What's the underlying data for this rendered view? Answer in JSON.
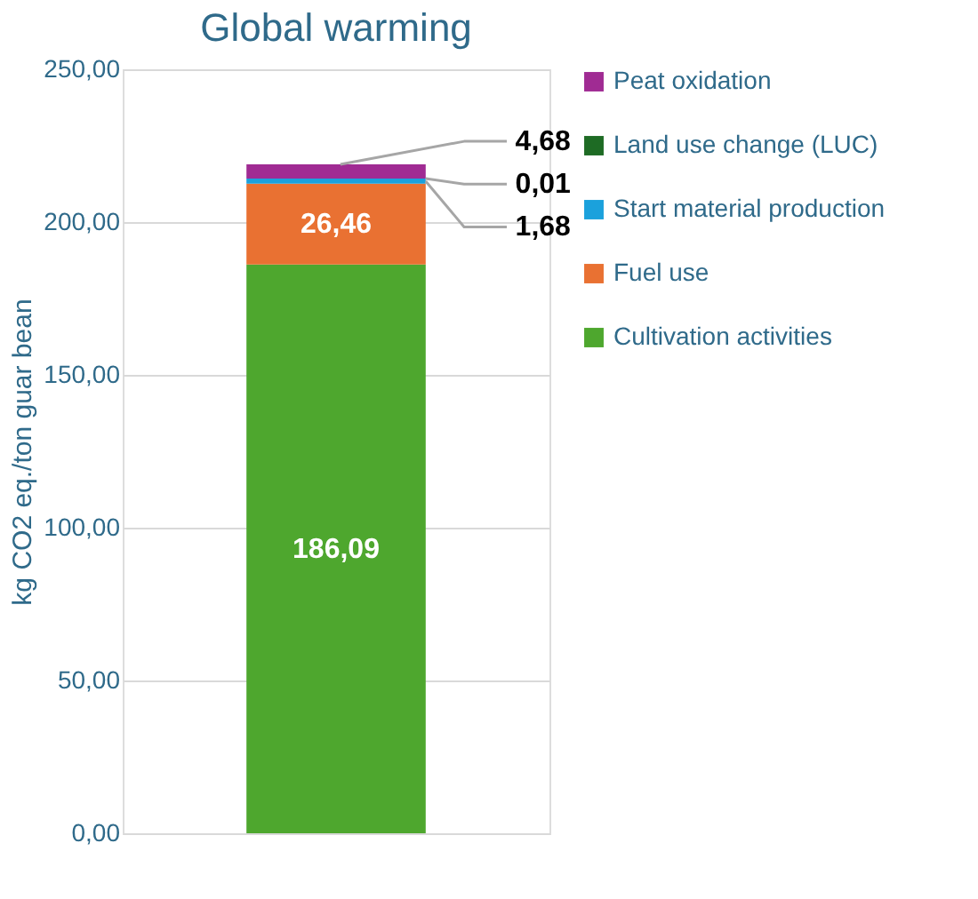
{
  "chart_data": {
    "type": "bar",
    "title": "Global warming",
    "ylabel": "kg CO2 eq./ton guar bean",
    "categories": [
      null
    ],
    "stacked": true,
    "series": [
      {
        "name": "Cultivation activities",
        "color": "#4ea72e",
        "values": [
          186.09
        ],
        "value_labels": [
          "186,09"
        ]
      },
      {
        "name": "Fuel use",
        "color": "#e97132",
        "values": [
          26.46
        ],
        "value_labels": [
          "26,46"
        ]
      },
      {
        "name": "Start material production",
        "color": "#1ba1dc",
        "values": [
          1.68
        ],
        "value_labels": [
          "1,68"
        ]
      },
      {
        "name": "Land use change (LUC)",
        "color": "#1e6b24",
        "values": [
          0.01
        ],
        "value_labels": [
          "0,01"
        ]
      },
      {
        "name": "Peat oxidation",
        "color": "#a02b93",
        "values": [
          4.68
        ],
        "value_labels": [
          "4,68"
        ]
      }
    ],
    "ylim": [
      0,
      250
    ],
    "yticks": [
      {
        "value": 0,
        "label": "0,00"
      },
      {
        "value": 50,
        "label": "50,00"
      },
      {
        "value": 100,
        "label": "100,00"
      },
      {
        "value": 150,
        "label": "150,00"
      },
      {
        "value": 200,
        "label": "200,00"
      },
      {
        "value": 250,
        "label": "250,00"
      }
    ],
    "grid": "y",
    "legend": "right"
  }
}
